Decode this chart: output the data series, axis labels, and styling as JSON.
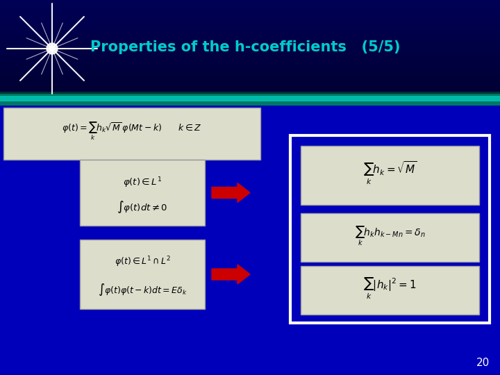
{
  "title": "Properties of the h-coefficients   (5/5)",
  "title_color": "#00CCCC",
  "bg_color": "#0000BB",
  "header_bg_top": "#000033",
  "header_bg_bottom": "#0000AA",
  "slide_number": "20",
  "separator_color_main": "#009988",
  "separator_color_light": "#00CCBB",
  "eq_main": "$\\varphi(t) = \\sum_{k} h_k \\sqrt{M}\\,\\varphi(Mt - k) \\qquad k \\in Z$",
  "eq_box1_line1": "$\\varphi(t) \\in L^1$",
  "eq_box1_line2": "$\\int \\varphi(t)dt \\neq 0$",
  "eq_box2_line1": "$\\varphi(t) \\in L^1 \\cap L^2$",
  "eq_box2_line2": "$\\int \\varphi(t)\\varphi(t-k)dt = E\\delta_k$",
  "eq_result1": "$\\sum_{k} h_k = \\sqrt{M}$",
  "eq_result2": "$\\sum_{k} h_k h_{k-Mn} = \\delta_n$",
  "eq_result3": "$\\sum_{k} |h_k|^2 = 1$",
  "box_face_color": "#DDDDCC",
  "arrow_color": "#CC0000",
  "white_box_edge": "#FFFFFF"
}
